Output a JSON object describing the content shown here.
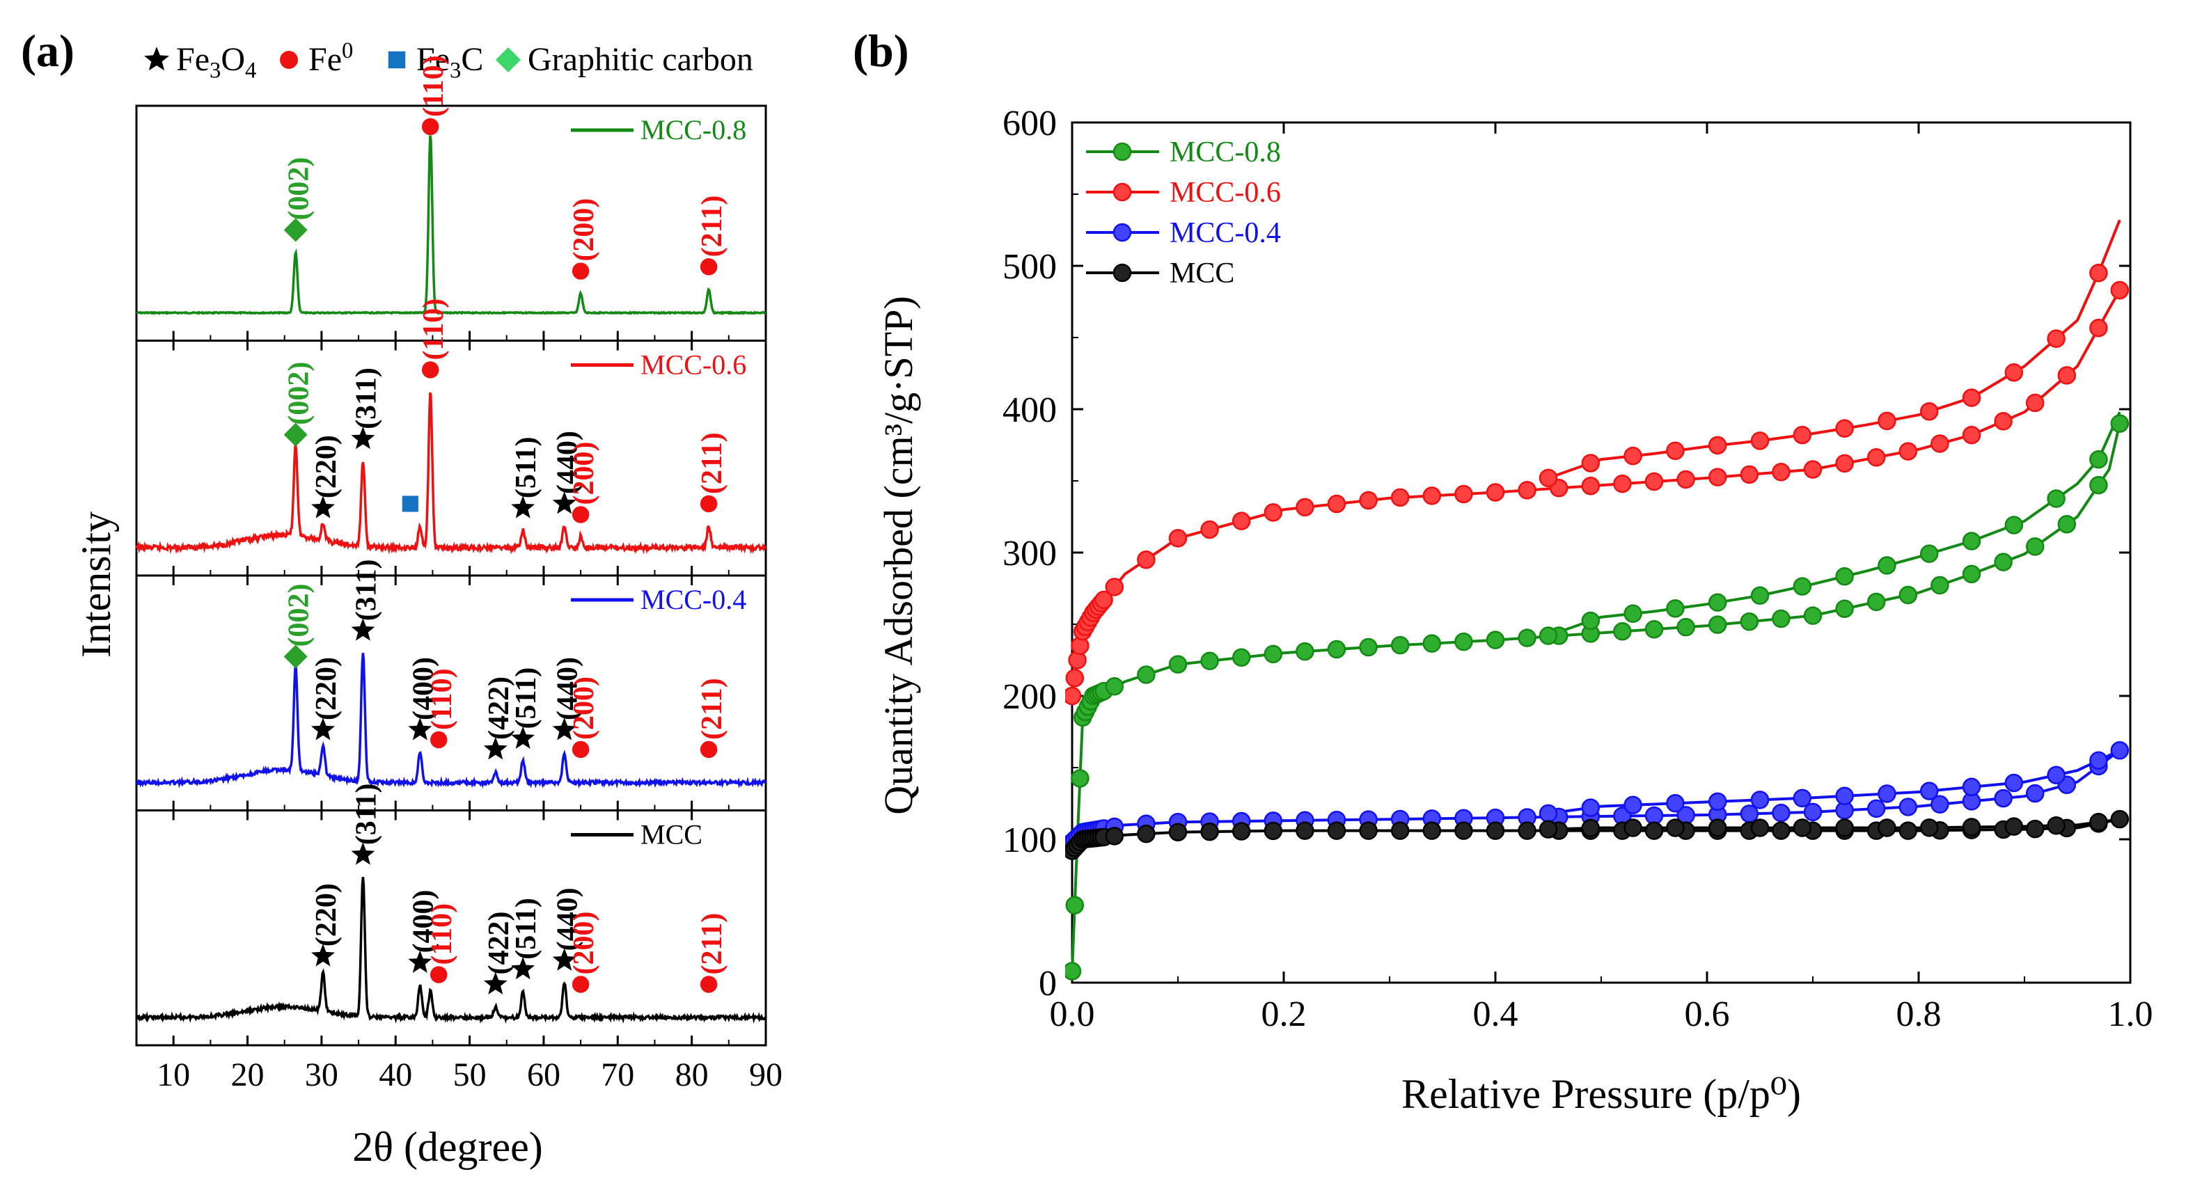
{
  "panel_a": {
    "label": "(a)",
    "legend": [
      {
        "name": "Fe3O4",
        "marker": "star",
        "color": "#000000"
      },
      {
        "name": "Fe0",
        "marker": "circle",
        "color": "#ee1111"
      },
      {
        "name": "Fe3C",
        "marker": "square",
        "color": "#1573c4"
      },
      {
        "name": "Graphitic carbon",
        "marker": "diamond",
        "color": "#3dd66b"
      }
    ],
    "ylabel": "Intensity",
    "xlabel": "2θ (degree)",
    "xticks": [
      10,
      20,
      30,
      40,
      50,
      60,
      70,
      80,
      90
    ]
  },
  "panel_b": {
    "label": "(b)",
    "ylabel": "Quantity Adsorbed (cm³/g·STP)",
    "xlabel": "Relative Pressure (p/p⁰)",
    "xticks": [
      "0.0",
      "0.2",
      "0.4",
      "0.6",
      "0.8",
      "1.0"
    ],
    "yticks": [
      "0",
      "100",
      "200",
      "300",
      "400",
      "500",
      "600"
    ],
    "legend": [
      "MCC-0.8",
      "MCC-0.6",
      "MCC-0.4",
      "MCC"
    ]
  },
  "chart_data": [
    {
      "type": "line",
      "title": "",
      "xlabel": "2θ (degree)",
      "ylabel": "Intensity",
      "xlim": [
        5,
        90
      ],
      "grid": false,
      "series": [
        {
          "name": "MCC-0.8",
          "color": "#138a13",
          "peaks": [
            {
              "x": 26.5,
              "h": 0.28
            },
            {
              "x": 44.7,
              "h": 0.83
            },
            {
              "x": 65.0,
              "h": 0.09
            },
            {
              "x": 82.3,
              "h": 0.11
            }
          ],
          "labels": [
            {
              "x": 26.5,
              "marker": "diamond",
              "text": "(002)",
              "color": "#2aa02a"
            },
            {
              "x": 44.7,
              "marker": "circle",
              "text": "(110)",
              "color": "#ee1111"
            },
            {
              "x": 65.0,
              "marker": "circle",
              "text": "(200)",
              "color": "#ee1111"
            },
            {
              "x": 82.3,
              "marker": "circle",
              "text": "(211)",
              "color": "#ee1111"
            }
          ]
        },
        {
          "name": "MCC-0.6",
          "color": "#ee1111",
          "peaks": [
            {
              "x": 26.5,
              "h": 0.42
            },
            {
              "x": 30.2,
              "h": 0.08
            },
            {
              "x": 35.6,
              "h": 0.4
            },
            {
              "x": 43.3,
              "h": 0.1
            },
            {
              "x": 44.7,
              "h": 0.72
            },
            {
              "x": 57.2,
              "h": 0.08
            },
            {
              "x": 62.8,
              "h": 0.1
            },
            {
              "x": 65.0,
              "h": 0.05
            },
            {
              "x": 82.3,
              "h": 0.1
            }
          ],
          "labels": [
            {
              "x": 26.5,
              "marker": "diamond",
              "text": "(002)",
              "color": "#2aa02a"
            },
            {
              "x": 30.2,
              "marker": "star",
              "text": "(220)",
              "color": "#000000"
            },
            {
              "x": 35.6,
              "marker": "star",
              "text": "(311)",
              "color": "#000000"
            },
            {
              "x": 43.3,
              "marker": "square",
              "text": "",
              "color": "#1573c4"
            },
            {
              "x": 44.7,
              "marker": "circle",
              "text": "(110)",
              "color": "#ee1111"
            },
            {
              "x": 57.2,
              "marker": "star",
              "text": "(511)",
              "color": "#000000"
            },
            {
              "x": 62.8,
              "marker": "star",
              "text": "(440)",
              "color": "#000000"
            },
            {
              "x": 65.0,
              "marker": "circle",
              "text": "(200)",
              "color": "#ee1111"
            },
            {
              "x": 82.3,
              "marker": "circle",
              "text": "(211)",
              "color": "#ee1111"
            }
          ]
        },
        {
          "name": "MCC-0.4",
          "color": "#1111ee",
          "peaks": [
            {
              "x": 26.5,
              "h": 0.48
            },
            {
              "x": 30.2,
              "h": 0.14
            },
            {
              "x": 35.6,
              "h": 0.6
            },
            {
              "x": 43.3,
              "h": 0.14
            },
            {
              "x": 53.5,
              "h": 0.05
            },
            {
              "x": 57.2,
              "h": 0.1
            },
            {
              "x": 62.8,
              "h": 0.14
            }
          ],
          "labels": [
            {
              "x": 26.5,
              "marker": "diamond",
              "text": "(002)",
              "color": "#2aa02a"
            },
            {
              "x": 30.2,
              "marker": "star",
              "text": "(220)",
              "color": "#000000"
            },
            {
              "x": 35.6,
              "marker": "star",
              "text": "(311)",
              "color": "#000000"
            },
            {
              "x": 43.3,
              "marker": "star",
              "text": "(400)",
              "color": "#000000"
            },
            {
              "x": 44.7,
              "marker": "circle",
              "text": "(110)",
              "color": "#ee1111"
            },
            {
              "x": 53.5,
              "marker": "star",
              "text": "(422)",
              "color": "#000000"
            },
            {
              "x": 57.2,
              "marker": "star",
              "text": "(511)",
              "color": "#000000"
            },
            {
              "x": 62.8,
              "marker": "star",
              "text": "(440)",
              "color": "#000000"
            },
            {
              "x": 65.0,
              "marker": "circle",
              "text": "(200)",
              "color": "#ee1111"
            },
            {
              "x": 82.3,
              "marker": "circle",
              "text": "(211)",
              "color": "#ee1111"
            }
          ]
        },
        {
          "name": "MCC",
          "color": "#000000",
          "peaks": [
            {
              "x": 30.2,
              "h": 0.18
            },
            {
              "x": 35.6,
              "h": 0.65
            },
            {
              "x": 43.3,
              "h": 0.15
            },
            {
              "x": 44.7,
              "h": 0.12
            },
            {
              "x": 53.5,
              "h": 0.05
            },
            {
              "x": 57.2,
              "h": 0.12
            },
            {
              "x": 62.8,
              "h": 0.16
            }
          ],
          "labels": [
            {
              "x": 30.2,
              "marker": "star",
              "text": "(220)",
              "color": "#000000"
            },
            {
              "x": 35.6,
              "marker": "star",
              "text": "(311)",
              "color": "#000000"
            },
            {
              "x": 43.3,
              "marker": "star",
              "text": "(400)",
              "color": "#000000"
            },
            {
              "x": 44.7,
              "marker": "circle",
              "text": "(110)",
              "color": "#ee1111"
            },
            {
              "x": 53.5,
              "marker": "star",
              "text": "(422)",
              "color": "#000000"
            },
            {
              "x": 57.2,
              "marker": "star",
              "text": "(511)",
              "color": "#000000"
            },
            {
              "x": 62.8,
              "marker": "star",
              "text": "(440)",
              "color": "#000000"
            },
            {
              "x": 65.0,
              "marker": "circle",
              "text": "(200)",
              "color": "#ee1111"
            },
            {
              "x": 82.3,
              "marker": "circle",
              "text": "(211)",
              "color": "#ee1111"
            }
          ]
        }
      ]
    },
    {
      "type": "line",
      "title": "",
      "xlabel": "Relative Pressure (p/p⁰)",
      "ylabel": "Quantity Adsorbed (cm³/g·STP)",
      "xlim": [
        0,
        1
      ],
      "ylim": [
        0,
        600
      ],
      "grid": false,
      "legend_position": "top-left",
      "series": [
        {
          "name": "MCC-0.8",
          "color": "#138a13",
          "fill": "#2fae2f",
          "adsorption": [
            [
              0.0,
              8
            ],
            [
              0.005,
              100
            ],
            [
              0.01,
              185
            ],
            [
              0.02,
              200
            ],
            [
              0.05,
              210
            ],
            [
              0.1,
              222
            ],
            [
              0.2,
              230
            ],
            [
              0.3,
              235
            ],
            [
              0.4,
              239
            ],
            [
              0.5,
              244
            ],
            [
              0.6,
              249
            ],
            [
              0.7,
              256
            ],
            [
              0.8,
              272
            ],
            [
              0.85,
              285
            ],
            [
              0.9,
              299
            ],
            [
              0.95,
              325
            ],
            [
              0.98,
              358
            ],
            [
              0.99,
              390
            ]
          ],
          "desorption": [
            [
              0.99,
              398
            ],
            [
              0.97,
              365
            ],
            [
              0.95,
              348
            ],
            [
              0.9,
              322
            ],
            [
              0.85,
              308
            ],
            [
              0.8,
              297
            ],
            [
              0.75,
              287
            ],
            [
              0.7,
              278
            ],
            [
              0.65,
              270
            ],
            [
              0.6,
              264
            ],
            [
              0.55,
              259
            ],
            [
              0.5,
              255
            ],
            [
              0.45,
              242
            ]
          ]
        },
        {
          "name": "MCC-0.6",
          "color": "#ee1111",
          "fill": "#ff4040",
          "adsorption": [
            [
              0.0,
              200
            ],
            [
              0.005,
              225
            ],
            [
              0.01,
              245
            ],
            [
              0.02,
              258
            ],
            [
              0.05,
              285
            ],
            [
              0.1,
              310
            ],
            [
              0.2,
              330
            ],
            [
              0.3,
              338
            ],
            [
              0.4,
              342
            ],
            [
              0.5,
              347
            ],
            [
              0.6,
              352
            ],
            [
              0.7,
              358
            ],
            [
              0.8,
              372
            ],
            [
              0.85,
              382
            ],
            [
              0.9,
              398
            ],
            [
              0.95,
              430
            ],
            [
              0.98,
              470
            ],
            [
              0.99,
              483
            ]
          ],
          "desorption": [
            [
              0.99,
              532
            ],
            [
              0.97,
              495
            ],
            [
              0.95,
              462
            ],
            [
              0.9,
              430
            ],
            [
              0.85,
              408
            ],
            [
              0.8,
              396
            ],
            [
              0.75,
              389
            ],
            [
              0.7,
              383
            ],
            [
              0.65,
              378
            ],
            [
              0.6,
              374
            ],
            [
              0.55,
              369
            ],
            [
              0.5,
              365
            ],
            [
              0.45,
              352
            ]
          ]
        },
        {
          "name": "MCC-0.4",
          "color": "#1111ee",
          "fill": "#4343ff",
          "adsorption": [
            [
              0.0,
              98
            ],
            [
              0.01,
              105
            ],
            [
              0.05,
              110
            ],
            [
              0.1,
              112
            ],
            [
              0.2,
              113
            ],
            [
              0.3,
              114
            ],
            [
              0.4,
              115
            ],
            [
              0.5,
              116
            ],
            [
              0.6,
              117
            ],
            [
              0.7,
              119
            ],
            [
              0.8,
              123
            ],
            [
              0.9,
              130
            ],
            [
              0.95,
              140
            ],
            [
              0.99,
              162
            ]
          ],
          "desorption": [
            [
              0.99,
              162
            ],
            [
              0.95,
              148
            ],
            [
              0.9,
              140
            ],
            [
              0.8,
              133
            ],
            [
              0.7,
              129
            ],
            [
              0.6,
              126
            ],
            [
              0.5,
              123
            ],
            [
              0.45,
              118
            ]
          ]
        },
        {
          "name": "MCC",
          "color": "#000000",
          "fill": "#222222",
          "adsorption": [
            [
              0.0,
              92
            ],
            [
              0.01,
              100
            ],
            [
              0.05,
              103
            ],
            [
              0.1,
              105
            ],
            [
              0.2,
              106
            ],
            [
              0.3,
              106
            ],
            [
              0.4,
              106
            ],
            [
              0.5,
              106
            ],
            [
              0.6,
              106
            ],
            [
              0.7,
              106
            ],
            [
              0.8,
              106
            ],
            [
              0.9,
              107
            ],
            [
              0.95,
              108
            ],
            [
              0.99,
              114
            ]
          ],
          "desorption": [
            [
              0.99,
              114
            ],
            [
              0.95,
              110
            ],
            [
              0.9,
              109
            ],
            [
              0.8,
              108
            ],
            [
              0.7,
              108
            ],
            [
              0.6,
              108
            ],
            [
              0.5,
              108
            ],
            [
              0.45,
              107
            ]
          ]
        }
      ]
    }
  ]
}
